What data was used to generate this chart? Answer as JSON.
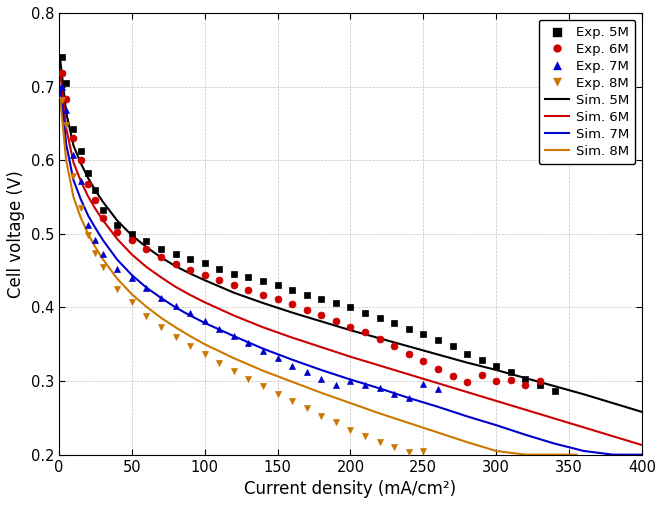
{
  "xlabel": "Current density (mA/cm²)",
  "ylabel": "Cell voltage (V)",
  "xlim": [
    0,
    400
  ],
  "ylim": [
    0.2,
    0.8
  ],
  "xticks": [
    0,
    50,
    100,
    150,
    200,
    250,
    300,
    350,
    400
  ],
  "yticks": [
    0.2,
    0.3,
    0.4,
    0.5,
    0.6,
    0.7,
    0.8
  ],
  "colors": {
    "5M": "#000000",
    "6M": "#cc0000",
    "7M": "#0000cc",
    "8M": "#cc7700"
  },
  "exp_5M_x": [
    2,
    5,
    10,
    15,
    20,
    25,
    30,
    40,
    50,
    60,
    70,
    80,
    90,
    100,
    110,
    120,
    130,
    140,
    150,
    160,
    170,
    180,
    190,
    200,
    210,
    220,
    230,
    240,
    250,
    260,
    270,
    280,
    290,
    300,
    310,
    320,
    330,
    340
  ],
  "exp_5M_y": [
    0.74,
    0.705,
    0.643,
    0.612,
    0.582,
    0.56,
    0.532,
    0.512,
    0.5,
    0.49,
    0.48,
    0.472,
    0.466,
    0.46,
    0.452,
    0.446,
    0.441,
    0.436,
    0.43,
    0.423,
    0.417,
    0.411,
    0.406,
    0.4,
    0.392,
    0.386,
    0.379,
    0.371,
    0.364,
    0.356,
    0.347,
    0.337,
    0.328,
    0.32,
    0.312,
    0.303,
    0.295,
    0.286
  ],
  "exp_6M_x": [
    2,
    5,
    10,
    15,
    20,
    25,
    30,
    40,
    50,
    60,
    70,
    80,
    90,
    100,
    110,
    120,
    130,
    140,
    150,
    160,
    170,
    180,
    190,
    200,
    210,
    220,
    230,
    240,
    250,
    260,
    270,
    280,
    290,
    300,
    310,
    320,
    330
  ],
  "exp_6M_y": [
    0.718,
    0.683,
    0.63,
    0.6,
    0.568,
    0.546,
    0.522,
    0.502,
    0.491,
    0.479,
    0.468,
    0.459,
    0.451,
    0.444,
    0.437,
    0.43,
    0.424,
    0.417,
    0.411,
    0.404,
    0.397,
    0.39,
    0.382,
    0.374,
    0.366,
    0.357,
    0.347,
    0.337,
    0.327,
    0.317,
    0.307,
    0.298,
    0.308,
    0.3,
    0.302,
    0.295,
    0.3
  ],
  "exp_7M_x": [
    2,
    5,
    10,
    15,
    20,
    25,
    30,
    40,
    50,
    60,
    70,
    80,
    90,
    100,
    110,
    120,
    130,
    140,
    150,
    160,
    170,
    180,
    190,
    200,
    210,
    220,
    230,
    240,
    250,
    260
  ],
  "exp_7M_y": [
    0.7,
    0.668,
    0.607,
    0.572,
    0.512,
    0.492,
    0.472,
    0.452,
    0.44,
    0.426,
    0.413,
    0.402,
    0.392,
    0.381,
    0.371,
    0.361,
    0.351,
    0.341,
    0.331,
    0.321,
    0.312,
    0.303,
    0.294,
    0.3,
    0.295,
    0.29,
    0.283,
    0.277,
    0.296,
    0.289
  ],
  "exp_8M_x": [
    2,
    5,
    10,
    15,
    20,
    25,
    30,
    40,
    50,
    60,
    70,
    80,
    90,
    100,
    110,
    120,
    130,
    140,
    150,
    160,
    170,
    180,
    190,
    200,
    210,
    220,
    230,
    240,
    250
  ],
  "exp_8M_y": [
    0.682,
    0.648,
    0.578,
    0.535,
    0.499,
    0.474,
    0.455,
    0.425,
    0.407,
    0.389,
    0.373,
    0.36,
    0.348,
    0.337,
    0.325,
    0.314,
    0.303,
    0.293,
    0.283,
    0.273,
    0.263,
    0.253,
    0.244,
    0.234,
    0.225,
    0.217,
    0.21,
    0.203,
    0.205
  ],
  "sim_5M_x": [
    1,
    5,
    10,
    15,
    20,
    25,
    30,
    40,
    50,
    60,
    70,
    80,
    90,
    100,
    120,
    140,
    160,
    180,
    200,
    220,
    240,
    260,
    280,
    300,
    320,
    340,
    360,
    380,
    400
  ],
  "sim_5M_y": [
    0.735,
    0.665,
    0.62,
    0.596,
    0.576,
    0.559,
    0.544,
    0.518,
    0.498,
    0.482,
    0.468,
    0.456,
    0.446,
    0.437,
    0.42,
    0.406,
    0.393,
    0.381,
    0.369,
    0.358,
    0.347,
    0.336,
    0.325,
    0.315,
    0.304,
    0.293,
    0.282,
    0.27,
    0.258
  ],
  "sim_6M_x": [
    1,
    5,
    10,
    15,
    20,
    25,
    30,
    40,
    50,
    60,
    70,
    80,
    90,
    100,
    120,
    140,
    160,
    180,
    200,
    220,
    240,
    260,
    280,
    300,
    320,
    340,
    360,
    380,
    400
  ],
  "sim_6M_y": [
    0.718,
    0.644,
    0.597,
    0.572,
    0.551,
    0.534,
    0.519,
    0.493,
    0.472,
    0.455,
    0.441,
    0.428,
    0.417,
    0.407,
    0.389,
    0.373,
    0.359,
    0.346,
    0.333,
    0.321,
    0.309,
    0.297,
    0.285,
    0.273,
    0.261,
    0.249,
    0.237,
    0.225,
    0.213
  ],
  "sim_7M_x": [
    1,
    5,
    10,
    15,
    20,
    25,
    30,
    40,
    50,
    60,
    70,
    80,
    90,
    100,
    120,
    140,
    160,
    180,
    200,
    220,
    240,
    260,
    280,
    300,
    320,
    340,
    360,
    380,
    400
  ],
  "sim_7M_y": [
    0.7,
    0.622,
    0.573,
    0.547,
    0.525,
    0.508,
    0.492,
    0.465,
    0.444,
    0.427,
    0.413,
    0.4,
    0.389,
    0.379,
    0.361,
    0.344,
    0.329,
    0.315,
    0.302,
    0.29,
    0.277,
    0.265,
    0.252,
    0.24,
    0.227,
    0.215,
    0.205,
    0.2,
    0.2
  ],
  "sim_8M_x": [
    1,
    5,
    10,
    15,
    20,
    25,
    30,
    40,
    50,
    60,
    70,
    80,
    90,
    100,
    120,
    140,
    160,
    180,
    200,
    220,
    240,
    260,
    280,
    300,
    320,
    340,
    355
  ],
  "sim_8M_y": [
    0.682,
    0.6,
    0.55,
    0.522,
    0.5,
    0.482,
    0.466,
    0.439,
    0.418,
    0.401,
    0.386,
    0.373,
    0.361,
    0.35,
    0.331,
    0.314,
    0.299,
    0.284,
    0.27,
    0.256,
    0.243,
    0.23,
    0.217,
    0.205,
    0.2,
    0.2,
    0.2
  ]
}
